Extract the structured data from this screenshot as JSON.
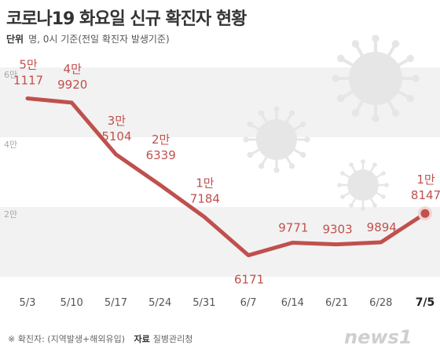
{
  "header": {
    "title": "코로나19 화요일 신규 확진자 현황",
    "unit_label": "단위",
    "unit_text": "명, 0시 기준(전일 확진자 발생기준)"
  },
  "footer": {
    "note": "※ 확진자: (지역발생+해외유입)",
    "source_label": "자료",
    "source": "질병관리청"
  },
  "logo": {
    "text": "news1",
    "icon": "news1-logo"
  },
  "chart_data": {
    "type": "line",
    "title": "코로나19 화요일 신규 확진자 현황",
    "unit": "명",
    "categories": [
      "5/3",
      "5/10",
      "5/17",
      "5/24",
      "5/31",
      "6/7",
      "6/14",
      "6/21",
      "6/28",
      "7/5"
    ],
    "series": [
      {
        "values": [
          51117,
          49920,
          35104,
          26339,
          17184,
          6171,
          9771,
          9303,
          9894,
          18147
        ]
      }
    ],
    "data_labels": [
      {
        "top": "5만",
        "bottom": "1117"
      },
      {
        "top": "4만",
        "bottom": "9920"
      },
      {
        "top": "3만",
        "bottom": "5104"
      },
      {
        "top": "2만",
        "bottom": "6339"
      },
      {
        "top": "1만",
        "bottom": "7184"
      },
      {
        "top": "",
        "bottom": "6171"
      },
      {
        "top": "",
        "bottom": "9771"
      },
      {
        "top": "",
        "bottom": "9303"
      },
      {
        "top": "",
        "bottom": "9894"
      },
      {
        "top": "1만",
        "bottom": "8147"
      }
    ],
    "y_ticks": [
      {
        "value": 20000,
        "label": "2만"
      },
      {
        "value": 40000,
        "label": "4만"
      },
      {
        "value": 60000,
        "label": "6만"
      }
    ],
    "ylim": [
      0,
      60000
    ],
    "grid": "alternating bands",
    "highlight_last": true,
    "colors": {
      "line": "#c0504d",
      "label": "#c0504d",
      "band": "#f2f2f2",
      "axis_text": "#555555",
      "virus": "#e6e6e6"
    }
  }
}
